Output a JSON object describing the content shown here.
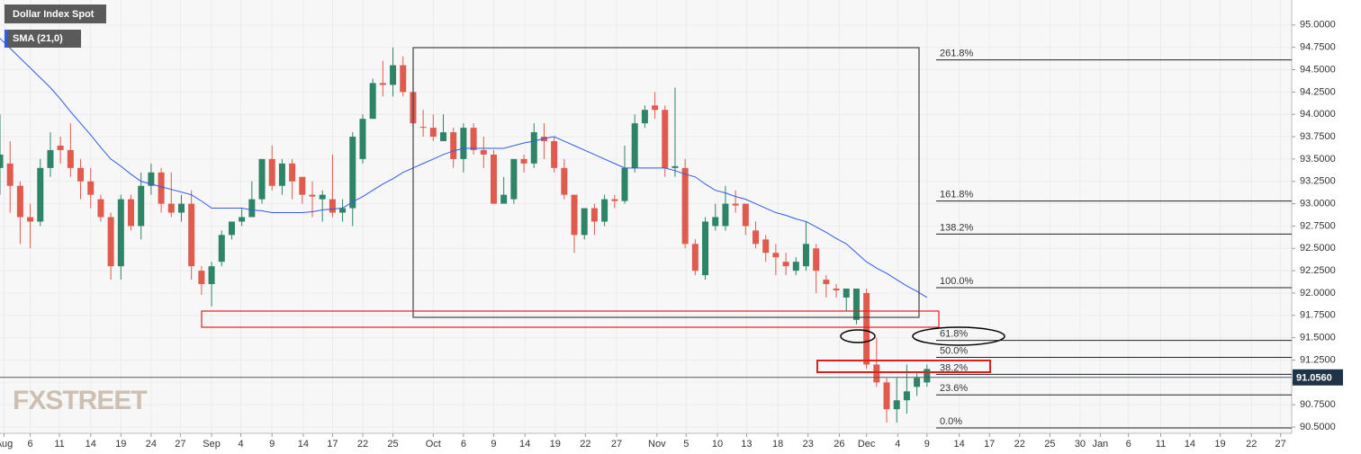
{
  "chart_data": {
    "type": "candlestick",
    "title": "Dollar Index Spot",
    "indicator": {
      "name": "SMA (21,0)",
      "color": "#2f5bea",
      "values": [
        94.85,
        94.74,
        94.63,
        94.52,
        94.41,
        94.3,
        94.17,
        94.03,
        93.9,
        93.77,
        93.63,
        93.5,
        93.42,
        93.33,
        93.25,
        93.22,
        93.19,
        93.16,
        93.13,
        93.1,
        93.03,
        92.95,
        92.95,
        92.95,
        92.95,
        92.93,
        92.92,
        92.9,
        92.9,
        92.9,
        92.9,
        92.91,
        92.93,
        92.94,
        92.95,
        93.02,
        93.08,
        93.15,
        93.22,
        93.28,
        93.35,
        93.4,
        93.45,
        93.5,
        93.55,
        93.59,
        93.62,
        93.62,
        93.62,
        93.62,
        93.62,
        93.65,
        93.68,
        93.7,
        93.73,
        93.75,
        93.7,
        93.65,
        93.6,
        93.55,
        93.5,
        93.45,
        93.4,
        93.4,
        93.4,
        93.4,
        93.4,
        93.37,
        93.33,
        93.3,
        93.22,
        93.15,
        93.12,
        93.08,
        93.05,
        93.0,
        92.95,
        92.9,
        92.87,
        92.83,
        92.8,
        92.74,
        92.68,
        92.61,
        92.55,
        92.45,
        92.35,
        92.28,
        92.22,
        92.15,
        92.08,
        92.02,
        91.95
      ]
    },
    "watermark": "FXSTREET",
    "up_color": "#2e8466",
    "down_color": "#e05a4e",
    "x": [
      1,
      2,
      3,
      4,
      5,
      6,
      7,
      8,
      9,
      10,
      11,
      12,
      13,
      14,
      15,
      16,
      17,
      18,
      19,
      20,
      21,
      22,
      23,
      24,
      25,
      26,
      27,
      28,
      29,
      30,
      31,
      32,
      33,
      34,
      35,
      36,
      37,
      38,
      39,
      40,
      41,
      42,
      43,
      44,
      45,
      46,
      47,
      48,
      49,
      50,
      51,
      52,
      53,
      54,
      55,
      56,
      57,
      58,
      59,
      60,
      61,
      62,
      63,
      64,
      65,
      66,
      67,
      68,
      69,
      70,
      71,
      72,
      73,
      74,
      75,
      76,
      77,
      78,
      79,
      80,
      81,
      82,
      83,
      84,
      85,
      86,
      87,
      88,
      89,
      90,
      91,
      92,
      93
    ],
    "open": [
      93.4,
      93.45,
      93.2,
      92.85,
      92.8,
      93.4,
      93.65,
      93.6,
      93.4,
      93.25,
      93.05,
      92.85,
      92.3,
      93.05,
      92.75,
      93.2,
      93.35,
      93.0,
      92.9,
      93.0,
      92.25,
      92.1,
      92.35,
      92.65,
      92.8,
      92.85,
      93.05,
      93.5,
      93.2,
      93.45,
      93.3,
      93.1,
      93.05,
      93.05,
      92.9,
      92.95,
      93.5,
      93.95,
      94.35,
      94.33,
      94.55,
      94.25,
      93.86,
      93.85,
      93.7,
      93.8,
      93.5,
      93.85,
      93.6,
      93.55,
      93.0,
      93.05,
      93.5,
      93.45,
      93.75,
      93.7,
      93.4,
      93.1,
      92.65,
      92.95,
      92.8,
      93.05,
      93.03,
      93.4,
      93.9,
      94.1,
      94.05,
      93.4,
      93.4,
      92.55,
      92.2,
      92.75,
      92.75,
      93.0,
      93.0,
      92.7,
      92.6,
      92.45,
      92.35,
      92.25,
      92.3,
      92.5,
      92.15,
      92.05,
      91.95,
      91.7,
      92.0,
      91.2,
      91.0,
      90.7,
      90.8,
      90.95,
      91.0
    ],
    "high": [
      94.0,
      93.7,
      93.25,
      93.0,
      93.5,
      93.8,
      93.75,
      93.9,
      93.5,
      93.4,
      93.1,
      92.9,
      93.1,
      93.1,
      93.35,
      93.45,
      93.4,
      93.35,
      93.1,
      93.15,
      92.3,
      92.35,
      92.7,
      92.8,
      92.95,
      93.25,
      93.5,
      93.65,
      93.5,
      93.5,
      93.3,
      93.25,
      93.15,
      93.55,
      93.05,
      93.8,
      94.0,
      94.4,
      94.6,
      94.75,
      94.65,
      94.5,
      94.05,
      94.0,
      94.0,
      93.85,
      93.9,
      93.9,
      93.75,
      93.6,
      93.3,
      93.5,
      93.55,
      93.9,
      93.9,
      93.75,
      93.5,
      93.1,
      92.95,
      93.0,
      93.1,
      93.1,
      93.65,
      94.0,
      94.1,
      94.25,
      94.1,
      94.3,
      93.5,
      92.6,
      92.85,
      93.0,
      93.2,
      93.15,
      93.0,
      92.8,
      92.65,
      92.55,
      92.45,
      92.4,
      92.8,
      92.55,
      92.2,
      92.1,
      92.05,
      92.05,
      92.05,
      91.5,
      91.05,
      91.05,
      91.2,
      91.1,
      91.2
    ],
    "low": [
      93.1,
      92.9,
      92.55,
      92.5,
      92.75,
      93.3,
      93.45,
      93.3,
      93.05,
      92.95,
      92.8,
      92.15,
      92.15,
      92.7,
      92.6,
      93.1,
      92.9,
      92.85,
      92.8,
      92.15,
      91.98,
      91.85,
      92.3,
      92.6,
      92.75,
      92.85,
      93.0,
      93.15,
      93.1,
      93.05,
      93.0,
      92.85,
      92.8,
      92.85,
      92.8,
      92.75,
      93.45,
      93.95,
      94.2,
      94.2,
      94.2,
      93.85,
      93.75,
      93.7,
      93.7,
      93.4,
      93.35,
      93.55,
      93.4,
      93.0,
      93.0,
      93.0,
      93.35,
      93.4,
      93.5,
      93.35,
      93.05,
      92.45,
      92.6,
      92.65,
      92.75,
      92.95,
      93.0,
      93.35,
      93.85,
      93.95,
      93.3,
      93.3,
      92.5,
      92.2,
      92.15,
      92.7,
      92.7,
      92.9,
      92.65,
      92.5,
      92.35,
      92.2,
      92.2,
      92.2,
      92.25,
      92.0,
      91.95,
      91.95,
      91.8,
      91.65,
      91.15,
      90.95,
      90.55,
      90.55,
      90.65,
      90.85,
      90.95
    ],
    "close": [
      93.55,
      93.2,
      92.85,
      92.8,
      93.4,
      93.6,
      93.6,
      93.4,
      93.25,
      93.1,
      92.85,
      92.3,
      93.05,
      92.75,
      93.2,
      93.35,
      93.0,
      92.9,
      93.0,
      92.3,
      92.1,
      92.3,
      92.65,
      92.8,
      92.85,
      93.05,
      93.5,
      93.2,
      93.45,
      93.25,
      93.1,
      93.08,
      93.1,
      92.9,
      92.95,
      93.75,
      93.95,
      94.35,
      94.33,
      94.55,
      94.25,
      93.9,
      93.85,
      93.75,
      93.8,
      93.5,
      93.85,
      93.6,
      93.55,
      93.0,
      93.1,
      93.5,
      93.45,
      93.8,
      93.7,
      93.4,
      93.1,
      92.65,
      92.95,
      92.8,
      93.05,
      93.03,
      93.4,
      93.9,
      94.05,
      94.05,
      93.4,
      93.42,
      92.55,
      92.25,
      92.8,
      92.85,
      93.0,
      92.98,
      92.75,
      92.55,
      92.45,
      92.4,
      92.3,
      92.35,
      92.55,
      92.25,
      92.1,
      92.03,
      92.05,
      92.05,
      91.2,
      91.0,
      90.7,
      90.8,
      90.9,
      91.05,
      91.15
    ],
    "fib_levels": [
      {
        "value": 94.61,
        "label": "261.8%"
      },
      {
        "value": 93.03,
        "label": "161.8%"
      },
      {
        "value": 92.66,
        "label": "138.2%"
      },
      {
        "value": 92.06,
        "label": "100.0%"
      },
      {
        "value": 91.47,
        "label": "61.8%"
      },
      {
        "value": 91.28,
        "label": "50.0%"
      },
      {
        "value": 91.09,
        "label": "38.2%"
      },
      {
        "value": 90.86,
        "label": "23.6%"
      },
      {
        "value": 90.49,
        "label": "0.0%"
      }
    ],
    "last_price": {
      "value": 91.056,
      "label": "91.0560"
    },
    "xlim": [
      1,
      129.2
    ],
    "ylim": [
      90.43,
      95.28
    ],
    "xticks": [
      {
        "value": 1.4,
        "label": "Aug"
      },
      {
        "value": 4,
        "label": "6"
      },
      {
        "value": 6.9,
        "label": "11"
      },
      {
        "value": 10,
        "label": "14"
      },
      {
        "value": 13,
        "label": "19"
      },
      {
        "value": 16,
        "label": "24"
      },
      {
        "value": 18.9,
        "label": "27"
      },
      {
        "value": 22,
        "label": "Sep"
      },
      {
        "value": 24.9,
        "label": "4"
      },
      {
        "value": 28,
        "label": "9"
      },
      {
        "value": 31.1,
        "label": "14"
      },
      {
        "value": 34,
        "label": "17"
      },
      {
        "value": 37,
        "label": "22"
      },
      {
        "value": 40,
        "label": "25"
      },
      {
        "value": 44,
        "label": "Oct"
      },
      {
        "value": 47,
        "label": "6"
      },
      {
        "value": 50,
        "label": "9"
      },
      {
        "value": 53.1,
        "label": "14"
      },
      {
        "value": 56.1,
        "label": "19"
      },
      {
        "value": 59.1,
        "label": "22"
      },
      {
        "value": 62.2,
        "label": "27"
      },
      {
        "value": 66.2,
        "label": "Nov"
      },
      {
        "value": 69.1,
        "label": "5"
      },
      {
        "value": 72.2,
        "label": "10"
      },
      {
        "value": 75.1,
        "label": "13"
      },
      {
        "value": 78.2,
        "label": "18"
      },
      {
        "value": 81.2,
        "label": "23"
      },
      {
        "value": 84.3,
        "label": "26"
      },
      {
        "value": 87,
        "label": "Dec"
      },
      {
        "value": 90.1,
        "label": "4"
      },
      {
        "value": 93,
        "label": "9"
      },
      {
        "value": 96.2,
        "label": "14"
      },
      {
        "value": 99.2,
        "label": "17"
      },
      {
        "value": 102.2,
        "label": "22"
      },
      {
        "value": 105.2,
        "label": "25"
      },
      {
        "value": 108.2,
        "label": "30"
      },
      {
        "value": 110.2,
        "label": "Jan"
      },
      {
        "value": 113,
        "label": "6"
      },
      {
        "value": 116.2,
        "label": "11"
      },
      {
        "value": 119.1,
        "label": "14"
      },
      {
        "value": 122.1,
        "label": "19"
      },
      {
        "value": 125.2,
        "label": "22"
      },
      {
        "value": 128.1,
        "label": "27"
      }
    ],
    "yticks": [
      {
        "value": 90.5,
        "label": "90.5000"
      },
      {
        "value": 90.75,
        "label": "90.7500"
      },
      {
        "value": 91,
        "label": "91.0000"
      },
      {
        "value": 91.25,
        "label": "91.2500"
      },
      {
        "value": 91.5,
        "label": "91.5000"
      },
      {
        "value": 91.75,
        "label": "91.7500"
      },
      {
        "value": 92,
        "label": "92.0000"
      },
      {
        "value": 92.25,
        "label": "92.2500"
      },
      {
        "value": 92.5,
        "label": "92.5000"
      },
      {
        "value": 92.75,
        "label": "92.7500"
      },
      {
        "value": 93,
        "label": "93.0000"
      },
      {
        "value": 93.25,
        "label": "93.2500"
      },
      {
        "value": 93.5,
        "label": "93.5000"
      },
      {
        "value": 93.75,
        "label": "93.7500"
      },
      {
        "value": 94,
        "label": "94.0000"
      },
      {
        "value": 94.25,
        "label": "94.2500"
      },
      {
        "value": 94.5,
        "label": "94.5000"
      },
      {
        "value": 94.75,
        "label": "94.7500"
      },
      {
        "value": 95,
        "label": "95.0000"
      }
    ],
    "grid": true
  }
}
